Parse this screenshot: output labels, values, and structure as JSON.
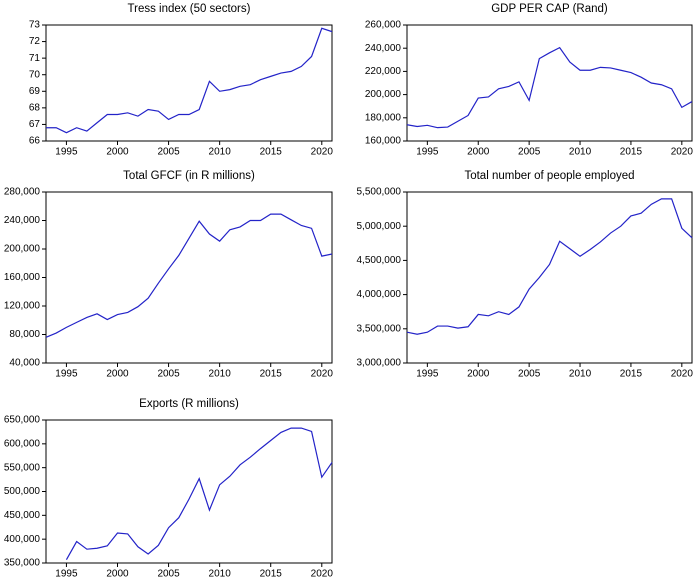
{
  "chart_data": [
    {
      "type": "line",
      "title": "Tress index (50 sectors)",
      "x": [
        1993,
        1994,
        1995,
        1996,
        1997,
        1998,
        1999,
        2000,
        2001,
        2002,
        2003,
        2004,
        2005,
        2006,
        2007,
        2008,
        2009,
        2010,
        2011,
        2012,
        2013,
        2014,
        2015,
        2016,
        2017,
        2018,
        2019,
        2020,
        2021
      ],
      "values": [
        66.8,
        66.8,
        66.5,
        66.8,
        66.6,
        67.1,
        67.6,
        67.6,
        67.7,
        67.5,
        67.9,
        67.8,
        67.3,
        67.6,
        67.6,
        67.9,
        69.6,
        69.0,
        69.1,
        69.3,
        69.4,
        69.7,
        69.9,
        70.1,
        70.2,
        70.5,
        71.1,
        72.8,
        72.6
      ],
      "color": "#2323c8",
      "xlim": [
        1993,
        2021
      ],
      "xticks": [
        1995,
        2000,
        2005,
        2010,
        2015,
        2020
      ],
      "ylim": [
        66,
        73
      ],
      "yticks": [
        66,
        67,
        68,
        69,
        70,
        71,
        72,
        73
      ]
    },
    {
      "type": "line",
      "title": "GDP PER CAP (Rand)",
      "x": [
        1993,
        1994,
        1995,
        1996,
        1997,
        1998,
        1999,
        2000,
        2001,
        2002,
        2003,
        2004,
        2005,
        2006,
        2007,
        2008,
        2009,
        2010,
        2011,
        2012,
        2013,
        2014,
        2015,
        2016,
        2017,
        2018,
        2019,
        2020,
        2021
      ],
      "values": [
        174000,
        172500,
        173500,
        171500,
        172000,
        177000,
        182000,
        197000,
        198000,
        205000,
        207000,
        211000,
        195000,
        231000,
        236000,
        240500,
        228000,
        221000,
        221000,
        223500,
        223000,
        221000,
        219000,
        215000,
        210000,
        208500,
        205000,
        189000,
        194000
      ],
      "color": "#2323c8",
      "xlim": [
        1993,
        2021
      ],
      "xticks": [
        1995,
        2000,
        2005,
        2010,
        2015,
        2020
      ],
      "ylim": [
        160000,
        260000
      ],
      "yticks": [
        {
          "value": 160000,
          "label": "160,000"
        },
        {
          "value": 180000,
          "label": "180,000"
        },
        {
          "value": 200000,
          "label": "200,000"
        },
        {
          "value": 220000,
          "label": "220,000"
        },
        {
          "value": 240000,
          "label": "240,000"
        },
        {
          "value": 260000,
          "label": "260,000"
        }
      ]
    },
    {
      "type": "line",
      "title": "Total GFCF (in R millions)",
      "x": [
        1993,
        1994,
        1995,
        1996,
        1997,
        1998,
        1999,
        2000,
        2001,
        2002,
        2003,
        2004,
        2005,
        2006,
        2007,
        2008,
        2009,
        2010,
        2011,
        2012,
        2013,
        2014,
        2015,
        2016,
        2017,
        2018,
        2019,
        2020,
        2021
      ],
      "values": [
        76000,
        82000,
        90000,
        97000,
        104000,
        109000,
        101000,
        108000,
        111000,
        119000,
        131000,
        152000,
        172000,
        191000,
        215000,
        239000,
        221000,
        211000,
        227000,
        231000,
        240000,
        240000,
        249000,
        249000,
        241000,
        233000,
        229000,
        190000,
        193000
      ],
      "color": "#2323c8",
      "xlim": [
        1993,
        2021
      ],
      "xticks": [
        1995,
        2000,
        2005,
        2010,
        2015,
        2020
      ],
      "ylim": [
        40000,
        280000
      ],
      "yticks": [
        {
          "value": 40000,
          "label": "40,000"
        },
        {
          "value": 80000,
          "label": "80,000"
        },
        {
          "value": 120000,
          "label": "120,000"
        },
        {
          "value": 160000,
          "label": "160,000"
        },
        {
          "value": 200000,
          "label": "200,000"
        },
        {
          "value": 240000,
          "label": "240,000"
        },
        {
          "value": 280000,
          "label": "280,000"
        }
      ]
    },
    {
      "type": "line",
      "title": "Total number of people employed",
      "x": [
        1993,
        1994,
        1995,
        1996,
        1997,
        1998,
        1999,
        2000,
        2001,
        2002,
        2003,
        2004,
        2005,
        2006,
        2007,
        2008,
        2009,
        2010,
        2011,
        2012,
        2013,
        2014,
        2015,
        2016,
        2017,
        2018,
        2019,
        2020,
        2021
      ],
      "values": [
        3450000,
        3420000,
        3450000,
        3540000,
        3540000,
        3510000,
        3530000,
        3710000,
        3690000,
        3750000,
        3710000,
        3820000,
        4080000,
        4250000,
        4440000,
        4780000,
        4670000,
        4560000,
        4660000,
        4770000,
        4900000,
        5000000,
        5150000,
        5190000,
        5320000,
        5400000,
        5400000,
        4970000,
        4830000
      ],
      "color": "#2323c8",
      "xlim": [
        1993,
        2021
      ],
      "xticks": [
        1995,
        2000,
        2005,
        2010,
        2015,
        2020
      ],
      "ylim": [
        3000000,
        5500000
      ],
      "yticks": [
        {
          "value": 3000000,
          "label": "3,000,000"
        },
        {
          "value": 3500000,
          "label": "3,500,000"
        },
        {
          "value": 4000000,
          "label": "4,000,000"
        },
        {
          "value": 4500000,
          "label": "4,500,000"
        },
        {
          "value": 5000000,
          "label": "5,000,000"
        },
        {
          "value": 5500000,
          "label": "5,500,000"
        }
      ]
    },
    {
      "type": "line",
      "title": "Exports (R millions)",
      "x": [
        1993,
        1994,
        1995,
        1996,
        1997,
        1998,
        1999,
        2000,
        2001,
        2002,
        2003,
        2004,
        2005,
        2006,
        2007,
        2008,
        2009,
        2010,
        2011,
        2012,
        2013,
        2014,
        2015,
        2016,
        2017,
        2018,
        2019,
        2020,
        2021
      ],
      "values": [
        null,
        null,
        357000,
        395000,
        379000,
        381000,
        386000,
        413000,
        411000,
        384000,
        369000,
        387000,
        424000,
        445000,
        484000,
        527000,
        461000,
        514000,
        532000,
        556000,
        572000,
        590000,
        607000,
        624000,
        633000,
        633000,
        626000,
        530000,
        561000
      ],
      "color": "#2323c8",
      "xlim": [
        1993,
        2021
      ],
      "xticks": [
        1995,
        2000,
        2005,
        2010,
        2015,
        2020
      ],
      "ylim": [
        350000,
        650000
      ],
      "yticks": [
        {
          "value": 350000,
          "label": "350,000"
        },
        {
          "value": 400000,
          "label": "400,000"
        },
        {
          "value": 450000,
          "label": "450,000"
        },
        {
          "value": 500000,
          "label": "500,000"
        },
        {
          "value": 550000,
          "label": "550,000"
        },
        {
          "value": 600000,
          "label": "600,000"
        },
        {
          "value": 650000,
          "label": "650,000"
        }
      ]
    }
  ]
}
